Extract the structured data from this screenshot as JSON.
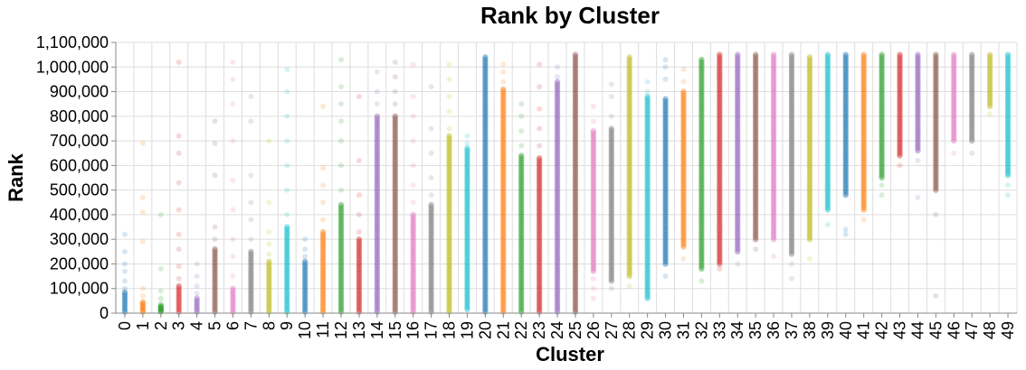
{
  "chart_data": {
    "type": "scatter",
    "title": "Rank by Cluster",
    "xlabel": "Cluster",
    "ylabel": "Rank",
    "ylim": [
      0,
      1100000
    ],
    "y_ticks": [
      0,
      100000,
      200000,
      300000,
      400000,
      500000,
      600000,
      700000,
      800000,
      900000,
      1000000,
      1100000
    ],
    "y_tick_labels": [
      "0",
      "100,000",
      "200,000",
      "300,000",
      "400,000",
      "500,000",
      "600,000",
      "700,000",
      "800,000",
      "900,000",
      "1,000,000",
      "1,100,000"
    ],
    "categories": [
      "0",
      "1",
      "2",
      "3",
      "4",
      "5",
      "6",
      "7",
      "8",
      "9",
      "10",
      "11",
      "12",
      "13",
      "14",
      "15",
      "16",
      "17",
      "18",
      "19",
      "20",
      "21",
      "22",
      "23",
      "24",
      "25",
      "26",
      "27",
      "28",
      "29",
      "30",
      "31",
      "32",
      "33",
      "34",
      "35",
      "36",
      "37",
      "38",
      "39",
      "40",
      "41",
      "42",
      "43",
      "44",
      "45",
      "46",
      "47",
      "48",
      "49"
    ],
    "grid": true,
    "legend": "none",
    "palette": [
      "#1f77b4",
      "#ff7f0e",
      "#2ca02c",
      "#d62728",
      "#9467bd",
      "#8c564b",
      "#e377c2",
      "#7f7f7f",
      "#bcbd22",
      "#17becf"
    ],
    "series": [
      {
        "cluster": "0",
        "core": [
          5000,
          85000
        ],
        "outliers": [
          100000,
          130000,
          170000,
          200000,
          250000,
          320000
        ]
      },
      {
        "cluster": "1",
        "core": [
          5000,
          45000
        ],
        "outliers": [
          70000,
          100000,
          290000,
          410000,
          470000,
          690000
        ]
      },
      {
        "cluster": "2",
        "core": [
          5000,
          30000
        ],
        "outliers": [
          40000,
          60000,
          90000,
          180000,
          400000
        ]
      },
      {
        "cluster": "3",
        "core": [
          5000,
          110000
        ],
        "outliers": [
          140000,
          190000,
          260000,
          320000,
          420000,
          530000,
          650000,
          720000,
          1020000
        ]
      },
      {
        "cluster": "4",
        "core": [
          5000,
          60000
        ],
        "outliers": [
          80000,
          110000,
          150000,
          200000
        ]
      },
      {
        "cluster": "5",
        "core": [
          5000,
          260000
        ],
        "outliers": [
          300000,
          350000,
          560000,
          690000,
          780000
        ]
      },
      {
        "cluster": "6",
        "core": [
          5000,
          100000
        ],
        "outliers": [
          150000,
          230000,
          300000,
          420000,
          540000,
          700000,
          850000,
          950000,
          1020000
        ]
      },
      {
        "cluster": "7",
        "core": [
          5000,
          250000
        ],
        "outliers": [
          300000,
          380000,
          450000,
          560000,
          780000,
          880000
        ]
      },
      {
        "cluster": "8",
        "core": [
          5000,
          210000
        ],
        "outliers": [
          240000,
          280000,
          330000,
          450000,
          700000
        ]
      },
      {
        "cluster": "9",
        "core": [
          5000,
          350000
        ],
        "outliers": [
          400000,
          500000,
          600000,
          700000,
          800000,
          900000,
          990000
        ]
      },
      {
        "cluster": "10",
        "core": [
          5000,
          210000
        ],
        "outliers": [
          230000,
          260000,
          300000
        ]
      },
      {
        "cluster": "11",
        "core": [
          5000,
          330000
        ],
        "outliers": [
          380000,
          450000,
          520000,
          590000,
          840000
        ]
      },
      {
        "cluster": "12",
        "core": [
          5000,
          440000
        ],
        "outliers": [
          500000,
          600000,
          700000,
          780000,
          850000,
          920000,
          1030000
        ]
      },
      {
        "cluster": "13",
        "core": [
          5000,
          300000
        ],
        "outliers": [
          330000,
          400000,
          480000,
          620000,
          880000
        ]
      },
      {
        "cluster": "14",
        "core": [
          5000,
          800000
        ],
        "outliers": [
          850000,
          900000,
          980000
        ]
      },
      {
        "cluster": "15",
        "core": [
          5000,
          800000
        ],
        "outliers": [
          850000,
          900000,
          960000,
          1020000
        ]
      },
      {
        "cluster": "16",
        "core": [
          5000,
          400000
        ],
        "outliers": [
          450000,
          520000,
          600000,
          700000,
          800000,
          880000,
          1010000
        ]
      },
      {
        "cluster": "17",
        "core": [
          5000,
          440000
        ],
        "outliers": [
          480000,
          550000,
          650000,
          750000,
          920000
        ]
      },
      {
        "cluster": "18",
        "core": [
          5000,
          720000
        ],
        "outliers": [
          750000,
          820000,
          880000,
          950000,
          1010000
        ]
      },
      {
        "cluster": "19",
        "core": [
          15000,
          670000
        ],
        "outliers": [
          690000,
          720000
        ]
      },
      {
        "cluster": "20",
        "core": [
          5000,
          1040000
        ],
        "outliers": []
      },
      {
        "cluster": "21",
        "core": [
          5000,
          910000
        ],
        "outliers": [
          940000,
          980000,
          1010000
        ]
      },
      {
        "cluster": "22",
        "core": [
          5000,
          640000
        ],
        "outliers": [
          680000,
          740000,
          800000,
          850000
        ]
      },
      {
        "cluster": "23",
        "core": [
          5000,
          630000
        ],
        "outliers": [
          680000,
          750000,
          830000,
          920000,
          1010000
        ]
      },
      {
        "cluster": "24",
        "core": [
          5000,
          940000
        ],
        "outliers": [
          960000,
          1000000
        ]
      },
      {
        "cluster": "25",
        "core": [
          5000,
          1050000
        ],
        "outliers": []
      },
      {
        "cluster": "26",
        "core": [
          170000,
          740000
        ],
        "outliers": [
          60000,
          100000,
          140000,
          780000,
          840000
        ]
      },
      {
        "cluster": "27",
        "core": [
          130000,
          750000
        ],
        "outliers": [
          100000,
          800000,
          880000,
          930000
        ]
      },
      {
        "cluster": "28",
        "core": [
          150000,
          1040000
        ],
        "outliers": [
          110000
        ]
      },
      {
        "cluster": "29",
        "core": [
          60000,
          880000
        ],
        "outliers": [
          900000,
          940000
        ]
      },
      {
        "cluster": "30",
        "core": [
          200000,
          870000
        ],
        "outliers": [
          150000,
          950000,
          1000000,
          1030000
        ]
      },
      {
        "cluster": "31",
        "core": [
          270000,
          900000
        ],
        "outliers": [
          220000,
          940000,
          990000
        ]
      },
      {
        "cluster": "32",
        "core": [
          180000,
          1030000
        ],
        "outliers": [
          130000
        ]
      },
      {
        "cluster": "33",
        "core": [
          200000,
          1050000
        ],
        "outliers": [
          180000
        ]
      },
      {
        "cluster": "34",
        "core": [
          250000,
          1050000
        ],
        "outliers": [
          200000
        ]
      },
      {
        "cluster": "35",
        "core": [
          300000,
          1050000
        ],
        "outliers": [
          260000
        ]
      },
      {
        "cluster": "36",
        "core": [
          300000,
          1050000
        ],
        "outliers": [
          230000
        ]
      },
      {
        "cluster": "37",
        "core": [
          240000,
          1050000
        ],
        "outliers": [
          140000,
          200000
        ]
      },
      {
        "cluster": "38",
        "core": [
          300000,
          1040000
        ],
        "outliers": [
          220000
        ]
      },
      {
        "cluster": "39",
        "core": [
          420000,
          1050000
        ],
        "outliers": [
          360000
        ]
      },
      {
        "cluster": "40",
        "core": [
          480000,
          1050000
        ],
        "outliers": [
          320000,
          340000
        ]
      },
      {
        "cluster": "41",
        "core": [
          420000,
          1050000
        ],
        "outliers": [
          380000
        ]
      },
      {
        "cluster": "42",
        "core": [
          550000,
          1050000
        ],
        "outliers": [
          480000,
          520000
        ]
      },
      {
        "cluster": "43",
        "core": [
          640000,
          1050000
        ],
        "outliers": [
          600000
        ]
      },
      {
        "cluster": "44",
        "core": [
          660000,
          1050000
        ],
        "outliers": [
          470000,
          620000
        ]
      },
      {
        "cluster": "45",
        "core": [
          500000,
          1050000
        ],
        "outliers": [
          70000,
          400000
        ]
      },
      {
        "cluster": "46",
        "core": [
          700000,
          1050000
        ],
        "outliers": [
          650000
        ]
      },
      {
        "cluster": "47",
        "core": [
          700000,
          1050000
        ],
        "outliers": [
          650000
        ]
      },
      {
        "cluster": "48",
        "core": [
          840000,
          1050000
        ],
        "outliers": [
          810000
        ]
      },
      {
        "cluster": "49",
        "core": [
          560000,
          1050000
        ],
        "outliers": [
          520000,
          480000
        ]
      }
    ]
  }
}
